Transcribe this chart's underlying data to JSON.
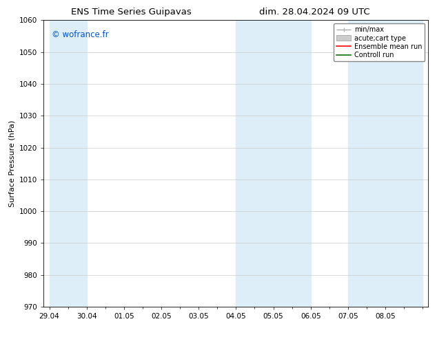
{
  "title_left": "ENS Time Series Guipavas",
  "title_right": "dim. 28.04.2024 09 UTC",
  "ylabel": "Surface Pressure (hPa)",
  "ylim": [
    970,
    1060
  ],
  "yticks": [
    970,
    980,
    990,
    1000,
    1010,
    1020,
    1030,
    1040,
    1050,
    1060
  ],
  "background_color": "#ffffff",
  "plot_bg_color": "#ffffff",
  "shaded_band_color": "#ddeef8",
  "watermark": "© wofrance.fr",
  "watermark_color": "#0055cc",
  "legend_items": [
    {
      "label": "min/max",
      "color": "#aaaaaa",
      "lw": 1.0
    },
    {
      "label": "acute;cart type",
      "color": "#ccddee",
      "lw": 6
    },
    {
      "label": "Ensemble mean run",
      "color": "#ff0000",
      "lw": 1.2
    },
    {
      "label": "Controll run",
      "color": "#007700",
      "lw": 1.2
    }
  ],
  "shaded_bands": [
    {
      "xstart": 0,
      "xend": 1
    },
    {
      "xstart": 5,
      "xend": 6
    },
    {
      "xstart": 6,
      "xend": 7
    },
    {
      "xstart": 8,
      "xend": 9
    },
    {
      "xstart": 9,
      "xend": 10
    }
  ],
  "xtick_labels": [
    "29.04",
    "30.04",
    "01.05",
    "02.05",
    "03.05",
    "04.05",
    "05.05",
    "06.05",
    "07.05",
    "08.05"
  ],
  "xtick_positions": [
    0,
    1,
    2,
    3,
    4,
    5,
    6,
    7,
    8,
    9
  ],
  "xlim": [
    -0.15,
    10.15
  ],
  "grid_color": "#cccccc",
  "grid_lw": 0.5,
  "title_fontsize": 9.5,
  "tick_fontsize": 7.5,
  "legend_fontsize": 7,
  "ylabel_fontsize": 8
}
